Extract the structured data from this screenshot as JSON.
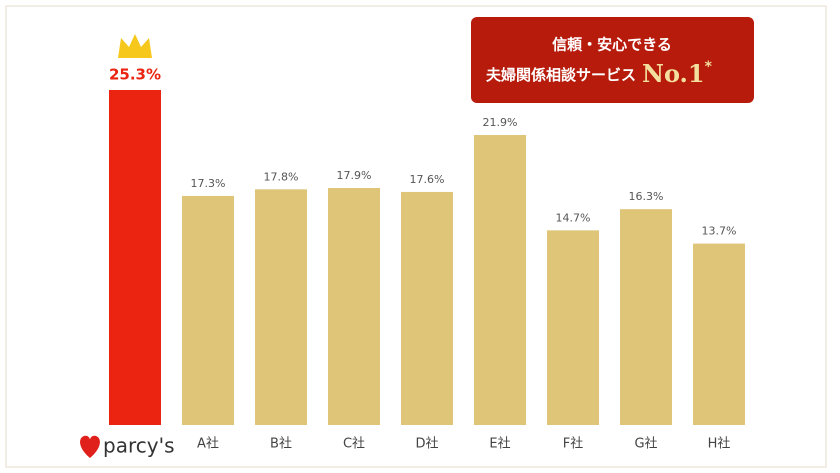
{
  "chart_data": {
    "type": "bar",
    "title_lines": [
      "信頼・安心できる",
      "夫婦関係相談サービス"
    ],
    "badge": "No.1",
    "footnote_mark": "*",
    "categories": [
      "parcy's",
      "A社",
      "B社",
      "C社",
      "D社",
      "E社",
      "F社",
      "G社",
      "H社"
    ],
    "values": [
      25.3,
      17.3,
      17.8,
      17.9,
      17.6,
      21.9,
      14.7,
      16.3,
      13.7
    ],
    "value_labels": [
      "25.3%",
      "17.3%",
      "17.8%",
      "17.9%",
      "17.6%",
      "21.9%",
      "14.7%",
      "16.3%",
      "13.7%"
    ],
    "colors": [
      "#ea2410",
      "#dfc577",
      "#dfc577",
      "#dfc577",
      "#dfc577",
      "#dfc577",
      "#dfc577",
      "#dfc577",
      "#dfc577"
    ]
  }
}
